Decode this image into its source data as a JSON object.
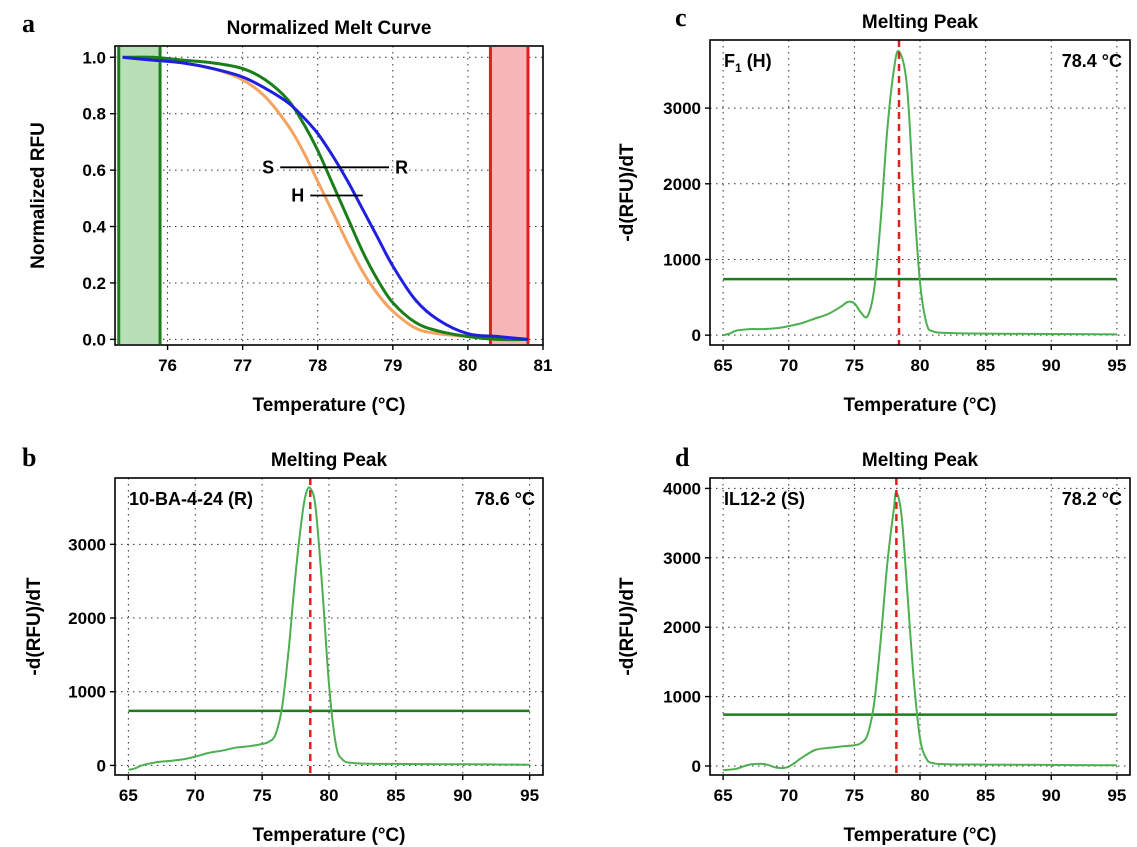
{
  "figure": {
    "panels": [
      "a",
      "b",
      "c",
      "d"
    ]
  },
  "chart_data": [
    {
      "panel": "a",
      "type": "line",
      "title": "Normalized Melt Curve",
      "xlabel": "Temperature (°C)",
      "ylabel": "Normalized RFU",
      "xlim": [
        75.3,
        81.0
      ],
      "ylim": [
        -0.02,
        1.04
      ],
      "xticks": [
        76,
        77,
        78,
        79,
        80,
        81
      ],
      "yticks": [
        0.0,
        0.2,
        0.4,
        0.6,
        0.8,
        1.0
      ],
      "ytick_labels": [
        "0.0",
        "0.2",
        "0.4",
        "0.6",
        "0.8",
        "1.0"
      ],
      "grid": true,
      "series": [
        {
          "key": "H",
          "color": "#f4a460",
          "x": [
            75.4,
            75.8,
            76.2,
            76.6,
            77.0,
            77.3,
            77.6,
            77.8,
            78.0,
            78.2,
            78.4,
            78.6,
            78.8,
            79.0,
            79.3,
            79.6,
            80.0,
            80.4,
            80.8
          ],
          "y": [
            1.0,
            0.99,
            0.98,
            0.96,
            0.92,
            0.86,
            0.76,
            0.67,
            0.56,
            0.45,
            0.34,
            0.24,
            0.16,
            0.1,
            0.04,
            0.02,
            0.01,
            0.0,
            0.0
          ]
        },
        {
          "key": "S",
          "color": "#1a7f1a",
          "x": [
            75.4,
            75.8,
            76.2,
            76.6,
            77.0,
            77.3,
            77.6,
            77.8,
            78.0,
            78.2,
            78.4,
            78.6,
            78.8,
            79.0,
            79.3,
            79.6,
            80.0,
            80.4,
            80.8
          ],
          "y": [
            1.0,
            1.0,
            0.99,
            0.98,
            0.96,
            0.92,
            0.85,
            0.77,
            0.67,
            0.55,
            0.43,
            0.31,
            0.21,
            0.13,
            0.06,
            0.03,
            0.01,
            0.0,
            0.0
          ]
        },
        {
          "key": "R",
          "color": "#1f1fe0",
          "x": [
            75.4,
            75.8,
            76.2,
            76.6,
            77.0,
            77.3,
            77.6,
            77.8,
            78.0,
            78.2,
            78.4,
            78.6,
            78.8,
            79.0,
            79.3,
            79.6,
            80.0,
            80.4,
            80.8
          ],
          "y": [
            1.0,
            0.99,
            0.98,
            0.96,
            0.93,
            0.89,
            0.84,
            0.79,
            0.73,
            0.65,
            0.56,
            0.46,
            0.36,
            0.26,
            0.14,
            0.07,
            0.02,
            0.01,
            0.0
          ]
        }
      ],
      "regions": [
        {
          "x0": 75.35,
          "x1": 75.9,
          "fill": "#b7e0b7",
          "edge": "#1a7f1a"
        },
        {
          "x0": 80.3,
          "x1": 80.8,
          "fill": "#f7b5b5",
          "edge": "#e01f1f"
        }
      ],
      "annotations": [
        {
          "label": "S",
          "side": "left",
          "line": [
            77.5,
            78.95
          ],
          "y": 0.61
        },
        {
          "label": "R",
          "side": "right",
          "line": [
            77.5,
            78.95
          ],
          "y": 0.61
        },
        {
          "label": "H",
          "side": "left",
          "line": [
            77.9,
            78.6
          ],
          "y": 0.51
        }
      ]
    },
    {
      "panel": "b",
      "type": "line",
      "title": "Melting Peak",
      "xlabel": "Temperature (°C)",
      "ylabel": "-d(RFU)/dT",
      "xlim": [
        64,
        96
      ],
      "ylim": [
        -130,
        3900
      ],
      "xticks": [
        65,
        70,
        75,
        80,
        85,
        90,
        95
      ],
      "yticks": [
        0,
        1000,
        2000,
        3000
      ],
      "grid": true,
      "sample": "10-BA-4-24 (R)",
      "peak_label": "78.6 °C",
      "peak_temp": 78.6,
      "threshold": 740,
      "series": [
        {
          "color": "#4caf50",
          "x": [
            65,
            65.5,
            66,
            67,
            68,
            69,
            70,
            71,
            72,
            73,
            74,
            75,
            75.5,
            76,
            76.5,
            77,
            77.5,
            78,
            78.3,
            78.6,
            79,
            79.5,
            80,
            80.5,
            81,
            82,
            85,
            90,
            95
          ],
          "y": [
            -60,
            -40,
            0,
            40,
            60,
            80,
            120,
            170,
            200,
            240,
            260,
            290,
            320,
            420,
            800,
            1600,
            2600,
            3400,
            3700,
            3760,
            3500,
            2400,
            1100,
            300,
            80,
            30,
            20,
            15,
            10
          ]
        }
      ]
    },
    {
      "panel": "c",
      "type": "line",
      "title": "Melting Peak",
      "xlabel": "Temperature (°C)",
      "ylabel": "-d(RFU)/dT",
      "xlim": [
        64,
        96
      ],
      "ylim": [
        -130,
        3900
      ],
      "xticks": [
        65,
        70,
        75,
        80,
        85,
        90,
        95
      ],
      "yticks": [
        0,
        1000,
        2000,
        3000
      ],
      "grid": true,
      "sample": "F",
      "sample_sub": "1",
      "sample_rest": " (H)",
      "peak_label": "78.4 °C",
      "peak_temp": 78.4,
      "threshold": 740,
      "series": [
        {
          "color": "#4caf50",
          "x": [
            65,
            65.5,
            66,
            67,
            68,
            69,
            70,
            71,
            72,
            73,
            74,
            74.5,
            75,
            75.5,
            76,
            76.5,
            77,
            77.5,
            78,
            78.4,
            79,
            79.5,
            80,
            80.5,
            81,
            82,
            85,
            90,
            95
          ],
          "y": [
            0,
            20,
            60,
            80,
            80,
            90,
            120,
            160,
            220,
            280,
            380,
            440,
            420,
            300,
            250,
            600,
            1500,
            2700,
            3500,
            3750,
            3300,
            1900,
            700,
            150,
            50,
            30,
            20,
            15,
            10
          ]
        }
      ]
    },
    {
      "panel": "d",
      "type": "line",
      "title": "Melting Peak",
      "xlabel": "Temperature (°C)",
      "ylabel": "-d(RFU)/dT",
      "xlim": [
        64,
        96
      ],
      "ylim": [
        -130,
        4150
      ],
      "xticks": [
        65,
        70,
        75,
        80,
        85,
        90,
        95
      ],
      "yticks": [
        0,
        1000,
        2000,
        3000,
        4000
      ],
      "grid": true,
      "sample": "IL12-2 (S)",
      "peak_label": "78.2 °C",
      "peak_temp": 78.2,
      "threshold": 740,
      "series": [
        {
          "color": "#4caf50",
          "x": [
            65,
            66,
            67,
            68,
            68.5,
            69,
            69.5,
            70,
            70.5,
            71,
            72,
            73,
            74,
            75,
            75.5,
            76,
            76.5,
            77,
            77.5,
            78,
            78.2,
            78.6,
            79,
            79.5,
            80,
            80.5,
            81,
            82,
            85,
            90,
            95
          ],
          "y": [
            -60,
            -40,
            20,
            30,
            10,
            -20,
            -30,
            -10,
            50,
            120,
            230,
            260,
            280,
            300,
            330,
            450,
            900,
            1800,
            2900,
            3700,
            3940,
            3600,
            2600,
            1300,
            400,
            100,
            40,
            25,
            20,
            15,
            10
          ]
        }
      ]
    }
  ]
}
